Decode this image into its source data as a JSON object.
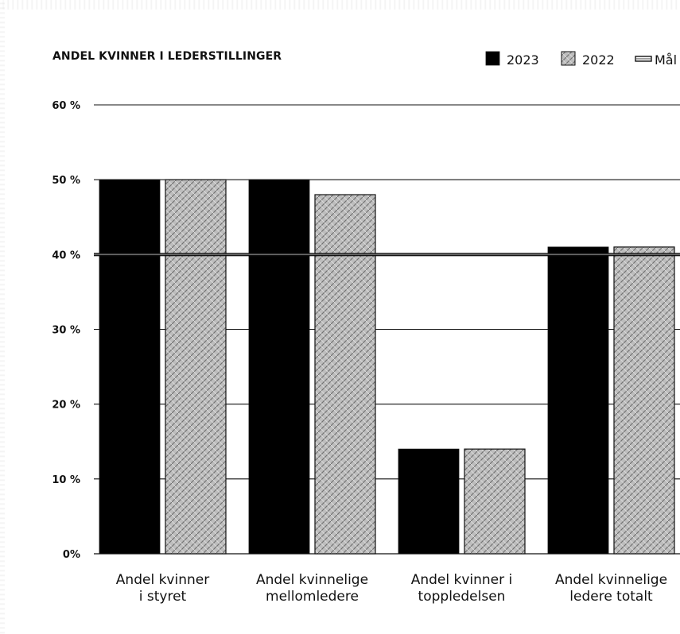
{
  "chart_data": {
    "type": "bar",
    "title": "ANDEL KVINNER I LEDERSTILLINGER",
    "categories": [
      "Andel kvinner i styret",
      "Andel kvinnelige mellomledere",
      "Andel kvinner i toppledelsen",
      "Andel kvinnelige ledere totalt"
    ],
    "category_lines": [
      [
        "Andel kvinner",
        "i styret"
      ],
      [
        "Andel kvinnelige",
        "mellomledere"
      ],
      [
        "Andel kvinner i",
        "toppledelsen"
      ],
      [
        "Andel kvinnelige",
        "ledere totalt"
      ]
    ],
    "series": [
      {
        "name": "2023",
        "values": [
          50,
          50,
          14,
          41
        ],
        "color": "#000000"
      },
      {
        "name": "2022",
        "values": [
          50,
          48,
          14,
          41
        ],
        "color": "#bdbdbd"
      }
    ],
    "target": {
      "name": "Mål",
      "value": 40,
      "color": "#6a6a6a"
    },
    "ylim": [
      0,
      60
    ],
    "yticks": [
      0,
      10,
      20,
      30,
      40,
      50,
      60
    ],
    "ytick_labels": [
      "0%",
      "10 %",
      "20 %",
      "30 %",
      "40 %",
      "50 %",
      "60 %"
    ],
    "grid": true,
    "legend_placement": "top-right"
  }
}
